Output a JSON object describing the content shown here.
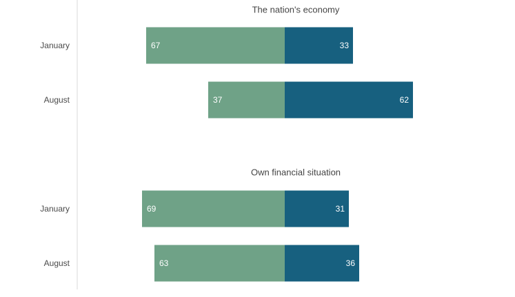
{
  "chart_data": {
    "type": "bar",
    "orientation": "horizontal-diverging",
    "colors": {
      "left": "#6fa287",
      "right": "#17607f",
      "axis": "#d9d9d9",
      "label": "#4a4a4a",
      "title": "#444444",
      "value_text": "#ffffff"
    },
    "panels": [
      {
        "title": "The nation's economy",
        "rows": [
          {
            "label": "January",
            "left": 67,
            "right": 33
          },
          {
            "label": "August",
            "left": 37,
            "right": 62
          }
        ]
      },
      {
        "title": "Own financial situation",
        "rows": [
          {
            "label": "January",
            "left": 69,
            "right": 31
          },
          {
            "label": "August",
            "left": 63,
            "right": 36
          }
        ]
      }
    ]
  }
}
